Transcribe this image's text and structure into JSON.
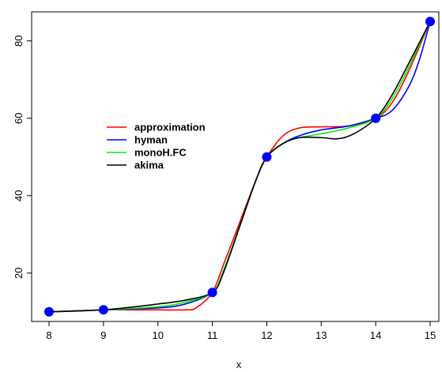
{
  "chart_data": {
    "type": "line",
    "title": "",
    "xlabel": "x",
    "ylabel": "",
    "xlim": [
      8,
      15
    ],
    "ylim": [
      7.5,
      87.5
    ],
    "xticks": [
      8,
      9,
      10,
      11,
      12,
      13,
      14,
      15
    ],
    "yticks": [
      20,
      40,
      60,
      80
    ],
    "grid": false,
    "legend_position": "center-left",
    "points": {
      "x": [
        8,
        9,
        11,
        12,
        14,
        15
      ],
      "y": [
        10,
        10.5,
        15,
        50,
        60,
        85
      ],
      "color": "#0000ff"
    },
    "series": [
      {
        "name": "approximation",
        "color": "#ff0000",
        "x": [
          8,
          9,
          9.5,
          10,
          10.5,
          10.7,
          11,
          11.2,
          11.5,
          11.8,
          12,
          12.3,
          12.6,
          13,
          13.5,
          14,
          14.3,
          14.6,
          15
        ],
        "y": [
          10,
          10.5,
          10.5,
          10.5,
          10.5,
          11,
          15,
          22,
          33,
          44,
          50,
          55.5,
          57.5,
          57.8,
          58,
          60,
          64,
          72,
          85
        ]
      },
      {
        "name": "hyman",
        "color": "#0000ff",
        "x": [
          8,
          9,
          10,
          10.5,
          11,
          11.2,
          11.5,
          11.8,
          12,
          12.3,
          12.6,
          13,
          13.5,
          14,
          14.3,
          14.6,
          14.8,
          15
        ],
        "y": [
          10,
          10.5,
          11,
          12,
          15,
          20,
          32,
          44,
          50,
          53.5,
          55.5,
          57,
          58,
          60,
          62,
          68,
          75,
          85
        ]
      },
      {
        "name": "monoH.FC",
        "color": "#00ee00",
        "x": [
          8,
          9,
          10,
          10.5,
          11,
          11.2,
          11.5,
          11.8,
          12,
          12.3,
          12.6,
          13,
          13.5,
          14,
          14.3,
          14.6,
          15
        ],
        "y": [
          10,
          10.5,
          11.3,
          12.5,
          15,
          20.5,
          32,
          44,
          50,
          53.5,
          55,
          56,
          57.5,
          60,
          65,
          73,
          85
        ]
      },
      {
        "name": "akima",
        "color": "#000000",
        "x": [
          8,
          9,
          10,
          10.5,
          11,
          11.2,
          11.5,
          11.8,
          12,
          12.3,
          12.6,
          13,
          13.3,
          13.6,
          14,
          14.3,
          14.6,
          15
        ],
        "y": [
          10,
          10.5,
          12,
          13,
          15,
          20,
          32,
          44,
          50,
          53.5,
          55,
          55,
          54.7,
          56,
          60,
          66,
          74,
          85
        ]
      }
    ]
  }
}
